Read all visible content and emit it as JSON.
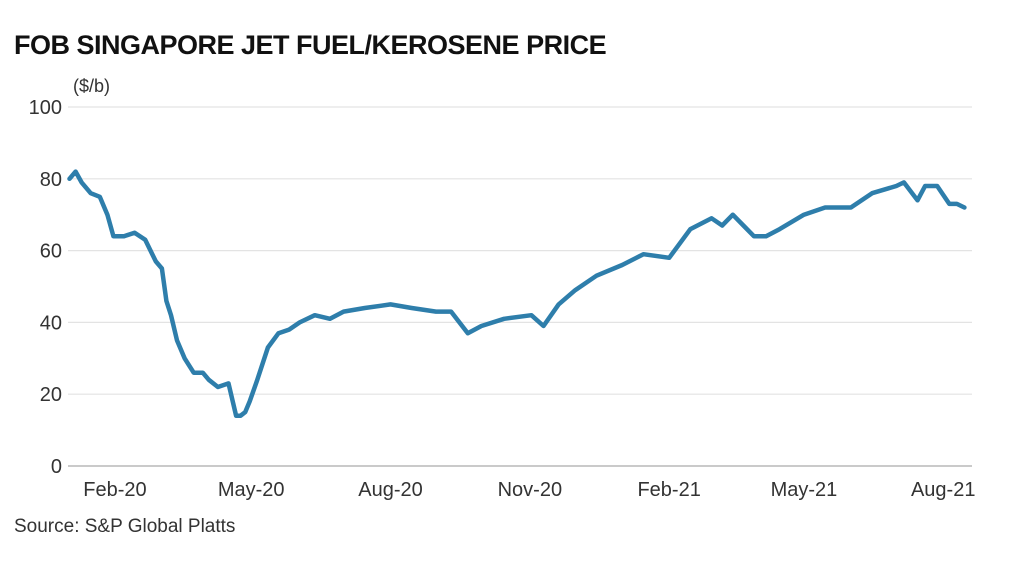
{
  "chart_data": {
    "type": "line",
    "title": "FOB SINGAPORE JET FUEL/KEROSENE PRICE",
    "ylabel": "($/b)",
    "xlabel": "",
    "ylim": [
      0,
      100
    ],
    "yticks": [
      "0",
      "20",
      "40",
      "60",
      "80",
      "100"
    ],
    "xticks": [
      "Feb-20",
      "May-20",
      "Aug-20",
      "Nov-20",
      "Feb-21",
      "May-21",
      "Aug-21"
    ],
    "grid": true,
    "line_color": "#2e7eab",
    "series": [
      {
        "x": [
          "2020-01-02",
          "2020-01-06",
          "2020-01-10",
          "2020-01-16",
          "2020-01-22",
          "2020-01-27",
          "2020-01-31",
          "2020-02-07",
          "2020-02-14",
          "2020-02-21",
          "2020-02-28",
          "2020-03-03",
          "2020-03-06",
          "2020-03-09",
          "2020-03-13",
          "2020-03-18",
          "2020-03-24",
          "2020-03-30",
          "2020-04-03",
          "2020-04-09",
          "2020-04-16",
          "2020-04-21",
          "2020-04-24",
          "2020-04-27",
          "2020-04-30",
          "2020-05-05",
          "2020-05-12",
          "2020-05-19",
          "2020-05-26",
          "2020-06-02",
          "2020-06-12",
          "2020-06-22",
          "2020-07-01",
          "2020-07-15",
          "2020-08-01",
          "2020-08-15",
          "2020-08-31",
          "2020-09-10",
          "2020-09-21",
          "2020-09-30",
          "2020-10-15",
          "2020-11-02",
          "2020-11-10",
          "2020-11-20",
          "2020-12-01",
          "2020-12-15",
          "2021-01-01",
          "2021-01-15",
          "2021-02-01",
          "2021-02-15",
          "2021-03-01",
          "2021-03-08",
          "2021-03-15",
          "2021-03-22",
          "2021-03-29",
          "2021-04-06",
          "2021-04-15",
          "2021-05-01",
          "2021-05-15",
          "2021-06-01",
          "2021-06-15",
          "2021-07-01",
          "2021-07-06",
          "2021-07-15",
          "2021-07-20",
          "2021-07-28",
          "2021-08-05",
          "2021-08-10",
          "2021-08-15"
        ],
        "values": [
          80,
          82,
          79,
          76,
          75,
          70,
          64,
          64,
          65,
          63,
          57,
          55,
          46,
          42,
          35,
          30,
          26,
          26,
          24,
          22,
          23,
          14,
          14,
          15,
          18,
          24,
          33,
          37,
          38,
          40,
          42,
          41,
          43,
          44,
          45,
          44,
          43,
          43,
          37,
          39,
          41,
          42,
          39,
          45,
          49,
          53,
          56,
          59,
          58,
          66,
          69,
          67,
          70,
          67,
          64,
          64,
          66,
          70,
          72,
          72,
          76,
          78,
          79,
          74,
          78,
          78,
          73,
          73,
          72
        ]
      }
    ]
  },
  "source": "Source: S&P Global Platts"
}
